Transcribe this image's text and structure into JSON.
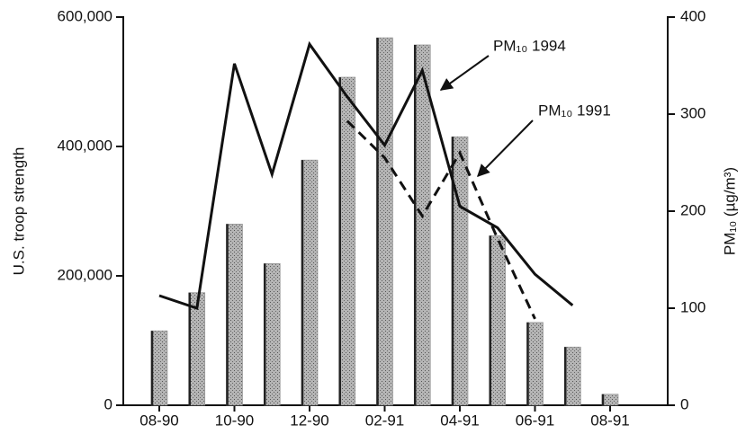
{
  "chart_data": {
    "type": "bar-line",
    "categories": [
      "08-90",
      null,
      "10-90",
      null,
      "12-90",
      null,
      "02-91",
      null,
      "04-91",
      null,
      "06-91",
      null,
      "08-91"
    ],
    "y_label": "U.S. troop strength",
    "y2_label": "PM₁₀ (µg/m³)",
    "ylim": [
      0,
      600000
    ],
    "yticks": [
      0,
      {
        "value": 200000,
        "label": "200,000"
      },
      {
        "value": 400000,
        "label": "400,000"
      },
      {
        "value": 600000,
        "label": "600,000"
      }
    ],
    "y2lim": [
      0,
      400
    ],
    "y2ticks": [
      0,
      100,
      200,
      300,
      400
    ],
    "series": [
      {
        "kind": "bar",
        "color": "#8a8a8a",
        "values": [
          115000,
          174000,
          280000,
          219000,
          379000,
          507000,
          568000,
          557000,
          415000,
          262000,
          128000,
          90000,
          17000
        ]
      },
      {
        "kind": "line",
        "name": "PM₁₀ 1994",
        "axis": "y2",
        "color": "#111111",
        "dash": false,
        "values": [
          113,
          100,
          352,
          238,
          372,
          318,
          268,
          345,
          205,
          183,
          135,
          103,
          null
        ]
      },
      {
        "kind": "line",
        "name": "PM₁₀ 1991",
        "axis": "y2",
        "color": "#111111",
        "dash": true,
        "values": [
          null,
          null,
          null,
          null,
          null,
          293,
          255,
          195,
          260,
          172,
          89,
          null,
          null
        ]
      }
    ]
  }
}
